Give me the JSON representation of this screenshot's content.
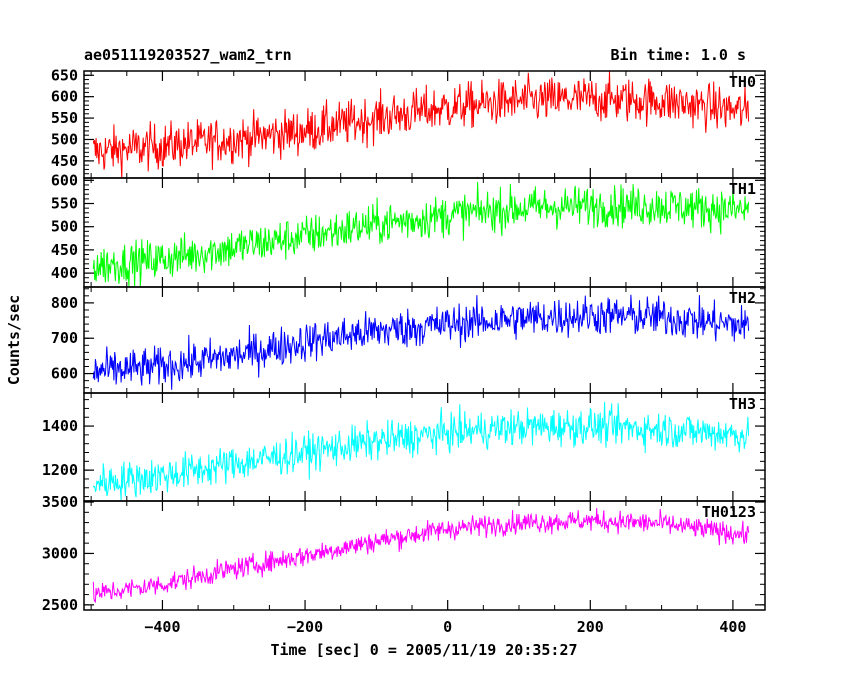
{
  "header": {
    "left_title": "ae051119203527_wam2_trn",
    "right_title": "Bin time: 1.0 s"
  },
  "axes": {
    "xlabel": "Time [sec] 0 = 2005/11/19 20:35:27",
    "ylabel": "Counts/sec"
  },
  "chart_data": {
    "type": "line",
    "title": "ae051119203527_wam2_trn",
    "subtitle": "Bin time: 1.0 s",
    "xlabel": "Time [sec] 0 = 2005/11/19 20:35:27",
    "ylabel": "Counts/sec",
    "xlim": [
      -510,
      445
    ],
    "x_ticks": [
      -400,
      -200,
      0,
      200,
      400
    ],
    "x_range_data": [
      -497,
      422
    ],
    "bin_time_s": 1.0,
    "grid": false,
    "panels": [
      {
        "name": "TH0",
        "color": "#ff0000",
        "ylim": [
          410,
          660
        ],
        "y_ticks": [
          450,
          500,
          550,
          600,
          650
        ],
        "trend": {
          "x": [
            -500,
            -400,
            -300,
            -200,
            -100,
            0,
            100,
            200,
            300,
            420
          ],
          "y": [
            470,
            485,
            500,
            520,
            550,
            575,
            590,
            595,
            590,
            565
          ]
        },
        "noise": 38
      },
      {
        "name": "TH1",
        "color": "#00ff00",
        "ylim": [
          370,
          605
        ],
        "y_ticks": [
          400,
          450,
          500,
          550,
          600
        ],
        "trend": {
          "x": [
            -500,
            -400,
            -300,
            -200,
            -100,
            0,
            100,
            200,
            300,
            420
          ],
          "y": [
            415,
            430,
            455,
            480,
            505,
            525,
            540,
            545,
            545,
            535
          ]
        },
        "noise": 32
      },
      {
        "name": "TH2",
        "color": "#0000ff",
        "ylim": [
          545,
          845
        ],
        "y_ticks": [
          600,
          700,
          800
        ],
        "trend": {
          "x": [
            -500,
            -400,
            -300,
            -200,
            -100,
            0,
            100,
            200,
            300,
            420
          ],
          "y": [
            605,
            620,
            650,
            690,
            720,
            740,
            755,
            765,
            760,
            735
          ]
        },
        "noise": 40
      },
      {
        "name": "TH3",
        "color": "#00ffff",
        "ylim": [
          1060,
          1550
        ],
        "y_ticks": [
          1200,
          1400
        ],
        "trend": {
          "x": [
            -500,
            -400,
            -300,
            -200,
            -100,
            0,
            100,
            200,
            300,
            420
          ],
          "y": [
            1140,
            1175,
            1230,
            1280,
            1330,
            1370,
            1395,
            1400,
            1385,
            1360
          ]
        },
        "noise": 60
      },
      {
        "name": "TH0123",
        "color": "#ff00ff",
        "ylim": [
          2450,
          3510
        ],
        "y_ticks": [
          2500,
          3000,
          3500
        ],
        "trend": {
          "x": [
            -500,
            -400,
            -300,
            -200,
            -100,
            0,
            100,
            200,
            300,
            420
          ],
          "y": [
            2600,
            2700,
            2850,
            2980,
            3120,
            3240,
            3300,
            3320,
            3290,
            3180
          ]
        },
        "noise": 75
      }
    ]
  }
}
